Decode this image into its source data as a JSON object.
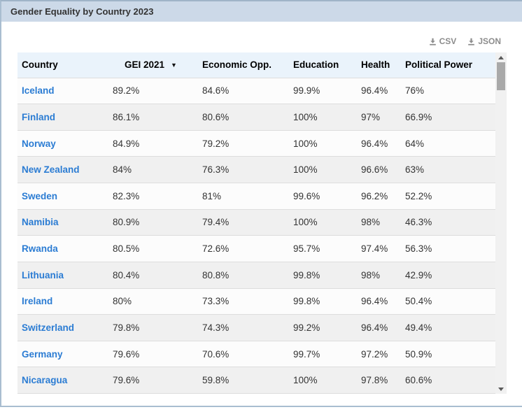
{
  "panel": {
    "title": "Gender Equality by Country 2023"
  },
  "export": {
    "csv_label": "CSV",
    "json_label": "JSON"
  },
  "table": {
    "columns": [
      {
        "label": "Country",
        "sorted": false
      },
      {
        "label": "GEI 2021",
        "sorted": true
      },
      {
        "label": "Economic Opp.",
        "sorted": false
      },
      {
        "label": "Education",
        "sorted": false
      },
      {
        "label": "Health",
        "sorted": false
      },
      {
        "label": "Political Power",
        "sorted": false
      }
    ],
    "sort": {
      "column": "GEI 2021",
      "direction": "desc"
    },
    "rows": [
      [
        "Iceland",
        "89.2%",
        "84.6%",
        "99.9%",
        "96.4%",
        "76%"
      ],
      [
        "Finland",
        "86.1%",
        "80.6%",
        "100%",
        "97%",
        "66.9%"
      ],
      [
        "Norway",
        "84.9%",
        "79.2%",
        "100%",
        "96.4%",
        "64%"
      ],
      [
        "New Zealand",
        "84%",
        "76.3%",
        "100%",
        "96.6%",
        "63%"
      ],
      [
        "Sweden",
        "82.3%",
        "81%",
        "99.6%",
        "96.2%",
        "52.2%"
      ],
      [
        "Namibia",
        "80.9%",
        "79.4%",
        "100%",
        "98%",
        "46.3%"
      ],
      [
        "Rwanda",
        "80.5%",
        "72.6%",
        "95.7%",
        "97.4%",
        "56.3%"
      ],
      [
        "Lithuania",
        "80.4%",
        "80.8%",
        "99.8%",
        "98%",
        "42.9%"
      ],
      [
        "Ireland",
        "80%",
        "73.3%",
        "99.8%",
        "96.4%",
        "50.4%"
      ],
      [
        "Switzerland",
        "79.8%",
        "74.3%",
        "99.2%",
        "96.4%",
        "49.4%"
      ],
      [
        "Germany",
        "79.6%",
        "70.6%",
        "99.7%",
        "97.2%",
        "50.9%"
      ],
      [
        "Nicaragua",
        "79.6%",
        "59.8%",
        "100%",
        "97.8%",
        "60.6%"
      ]
    ]
  },
  "colors": {
    "titlebar_bg": "#ccd9e8",
    "panel_border": "#a9bdd0",
    "header_bg": "#eaf3fb",
    "row_alt_bg": "#f0f0f0",
    "row_border": "#dddddd",
    "country_link": "#2b7cd3",
    "export_button": "#8c8c8c",
    "scrollbar_track": "#f1f1f1",
    "scrollbar_thumb": "#a9a9a9"
  }
}
